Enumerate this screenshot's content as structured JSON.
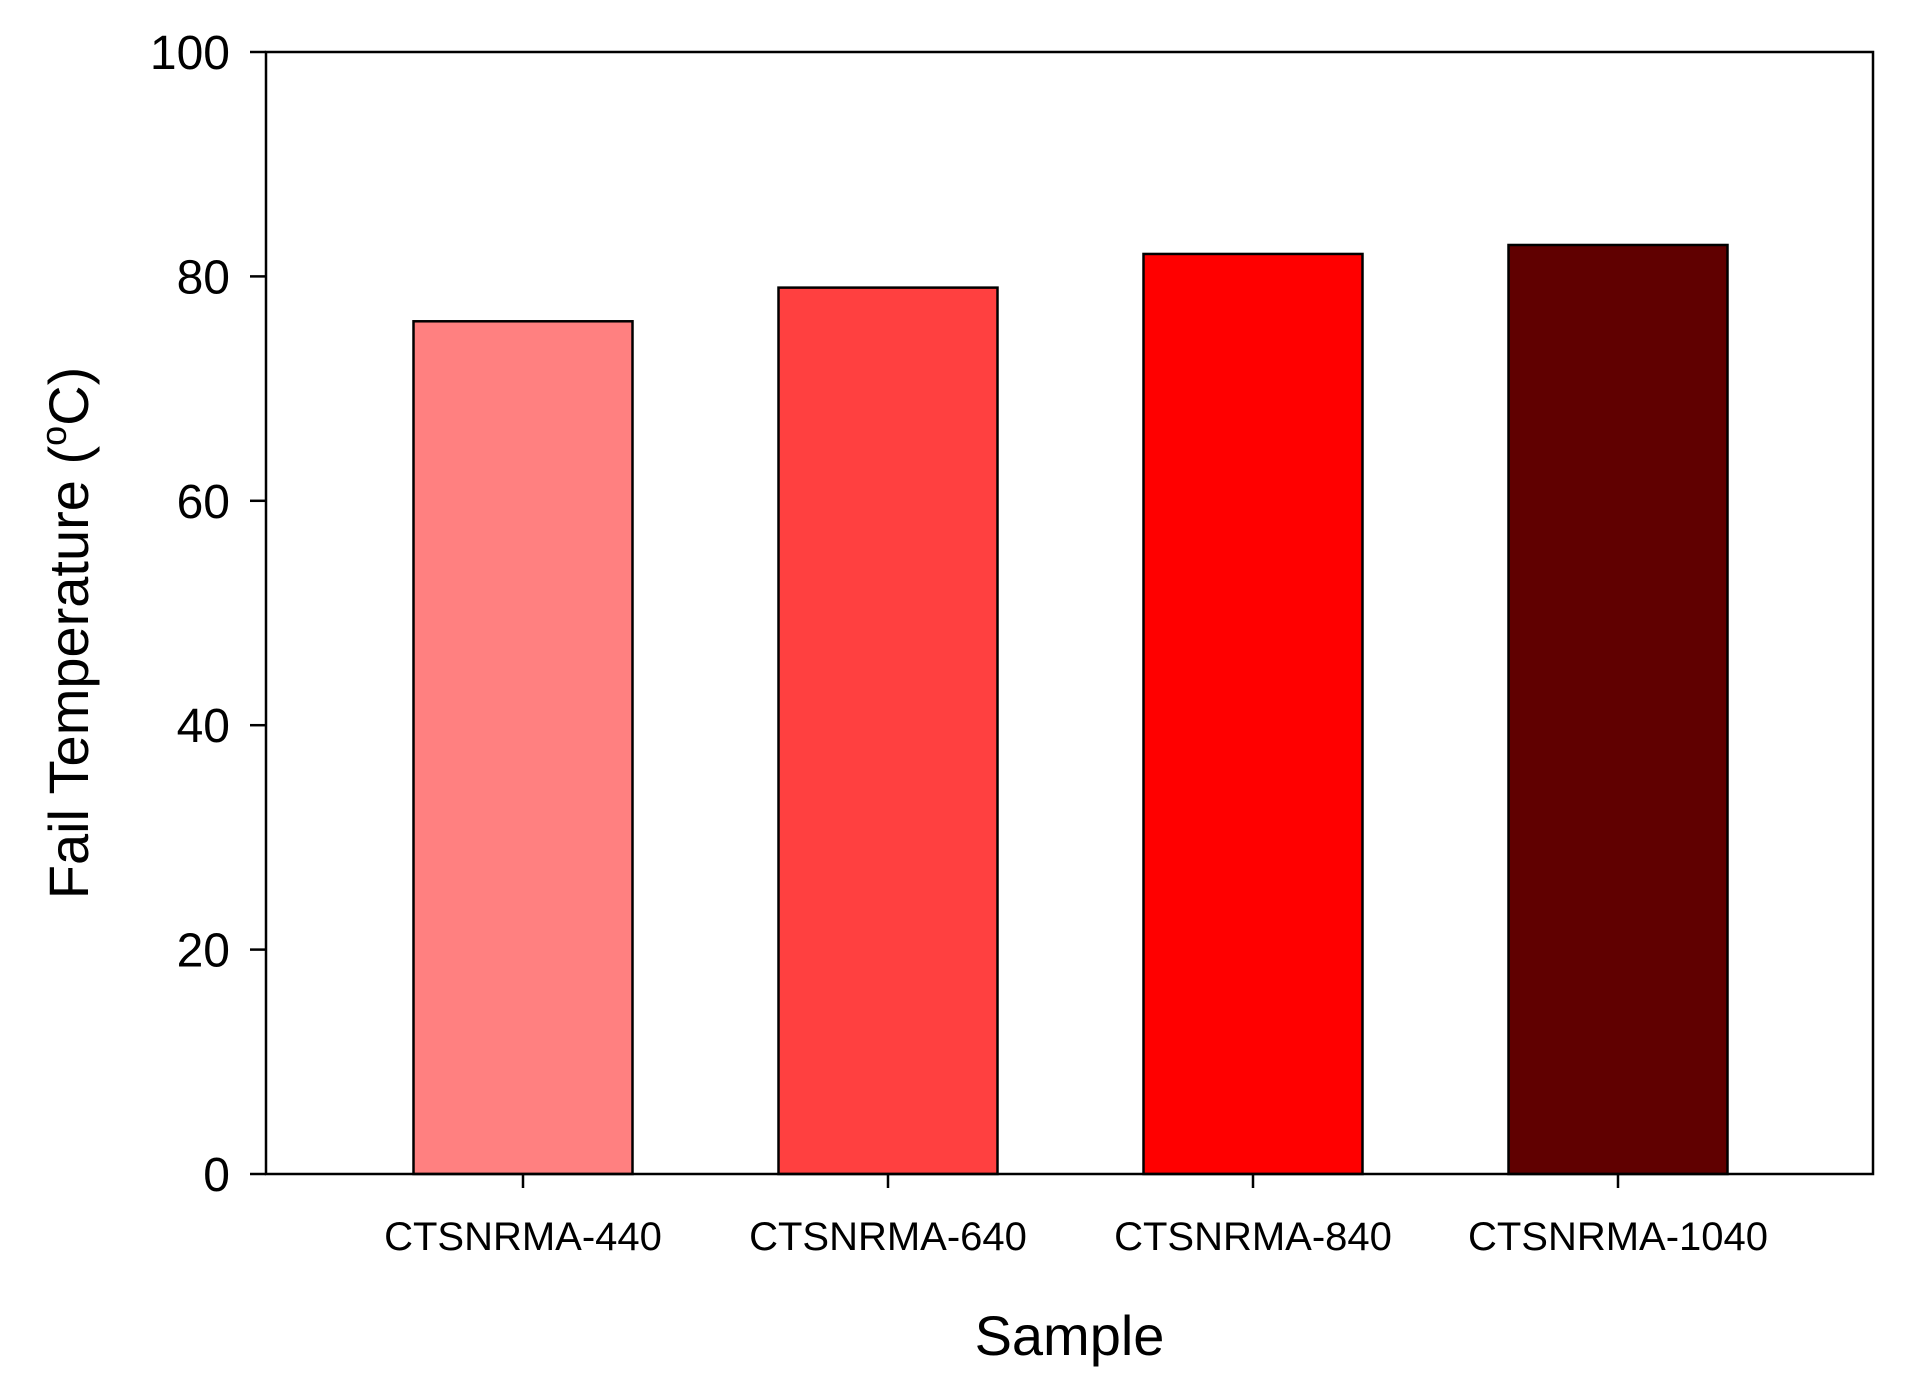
{
  "chart_data": {
    "type": "bar",
    "title": "",
    "xlabel": "Sample",
    "ylabel": {
      "prefix": "Fail Temperature (",
      "sup": "o",
      "suffix": "C)"
    },
    "categories": [
      "CTSNRMA-440",
      "CTSNRMA-640",
      "CTSNRMA-840",
      "CTSNRMA-1040"
    ],
    "values": [
      76,
      79,
      82,
      82.8
    ],
    "colors": [
      "#ff8080",
      "#ff4040",
      "#ff0000",
      "#600000"
    ],
    "ylim": [
      0,
      100
    ],
    "yticks": [
      0,
      20,
      40,
      60,
      80,
      100
    ],
    "grid": false,
    "legend": "none"
  }
}
